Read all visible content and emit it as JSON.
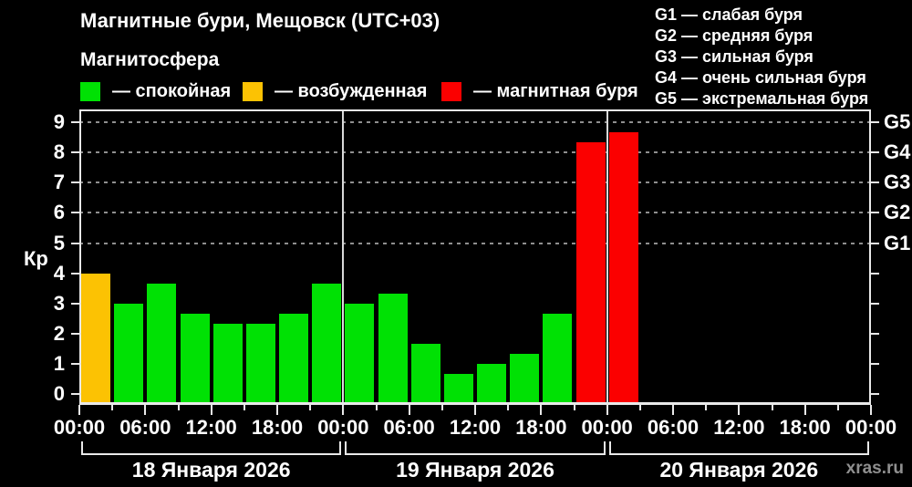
{
  "title": "Магнитные бури, Мещовск (UTC+03)",
  "subtitle": "Магнитосфера",
  "legend": [
    {
      "id": "quiet",
      "label": "— спокойная",
      "color": "#00e104"
    },
    {
      "id": "excited",
      "label": "— возбужденная",
      "color": "#fcc203"
    },
    {
      "id": "storm",
      "label": "— магнитная буря",
      "color": "#fb0000"
    }
  ],
  "storm_scale": [
    {
      "level": "G1",
      "desc": "— слабая буря"
    },
    {
      "level": "G2",
      "desc": "— средняя буря"
    },
    {
      "level": "G3",
      "desc": "— сильная буря"
    },
    {
      "level": "G4",
      "desc": "— очень сильная буря"
    },
    {
      "level": "G5",
      "desc": "— экстремальная буря"
    }
  ],
  "watermark": "xras.ru",
  "chart_data": {
    "type": "bar",
    "title": "Магнитные бури, Мещовск (UTC+03)",
    "ylabel": "Кр",
    "ylim": [
      0,
      9
    ],
    "yticks": [
      0,
      1,
      2,
      3,
      4,
      5,
      6,
      7,
      8,
      9
    ],
    "gridlines_at": [
      5,
      6,
      7,
      8,
      9
    ],
    "grid": "dashed horizontal at storm levels",
    "right_axis": [
      {
        "label": "G1",
        "kp": 5
      },
      {
        "label": "G2",
        "kp": 6
      },
      {
        "label": "G3",
        "kp": 7
      },
      {
        "label": "G4",
        "kp": 8
      },
      {
        "label": "G5",
        "kp": 9
      }
    ],
    "x_time_labels": [
      "00:00",
      "06:00",
      "12:00",
      "18:00",
      "00:00",
      "06:00",
      "12:00",
      "18:00",
      "00:00",
      "06:00",
      "12:00",
      "18:00",
      "00:00"
    ],
    "hours_per_bar": 3,
    "color_rule": {
      "excited_from": 4,
      "storm_from": 5
    },
    "days": [
      {
        "label": "18 Января 2026",
        "values": [
          4,
          3,
          3.67,
          2.67,
          2.33,
          2.33,
          2.67,
          3.67
        ]
      },
      {
        "label": "19 Января 2026",
        "values": [
          3,
          3.33,
          1.67,
          0.67,
          1,
          1.33,
          2.67,
          8.33
        ]
      },
      {
        "label": "20 Января 2026",
        "values": [
          8.67,
          null,
          null,
          null,
          null,
          null,
          null,
          null
        ]
      }
    ]
  }
}
